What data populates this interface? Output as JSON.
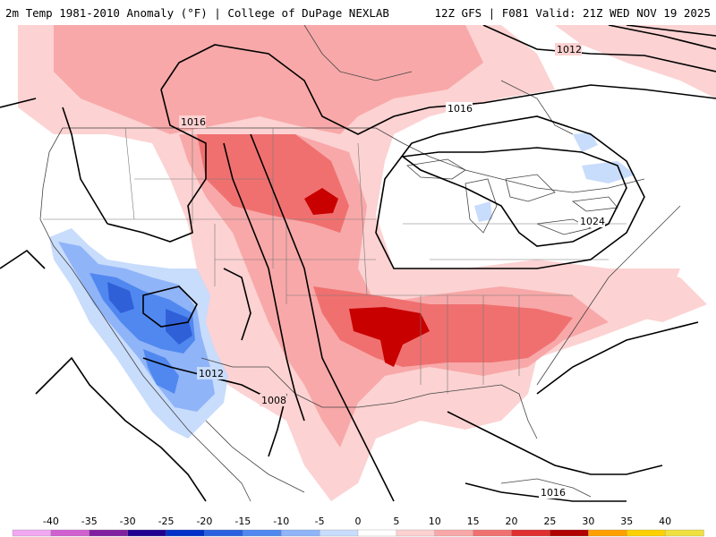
{
  "header": {
    "left": "2m Temp 1981-2010 Anomaly (°F) | College of DuPage NEXLAB",
    "right": "12Z GFS | F081 Valid: 21Z WED NOV 19 2025"
  },
  "isobar_labels": [
    "1012",
    "1016",
    "1016",
    "1024",
    "1012",
    "1008",
    "1016"
  ],
  "colorbar": {
    "ticks": [
      "-40",
      "-35",
      "-30",
      "-25",
      "-20",
      "-15",
      "-10",
      "-5",
      "0",
      "5",
      "10",
      "15",
      "20",
      "25",
      "30",
      "35",
      "40"
    ],
    "colors": [
      "#f0a8f0",
      "#d060d0",
      "#8020a0",
      "#200090",
      "#0030c8",
      "#2860e0",
      "#5088f0",
      "#90b4f8",
      "#c8dcfc",
      "#ffffff",
      "#fcd0d0",
      "#f8a8a8",
      "#f07070",
      "#e03030",
      "#b00000",
      "#ffa000",
      "#ffd000",
      "#f0e040"
    ]
  }
}
